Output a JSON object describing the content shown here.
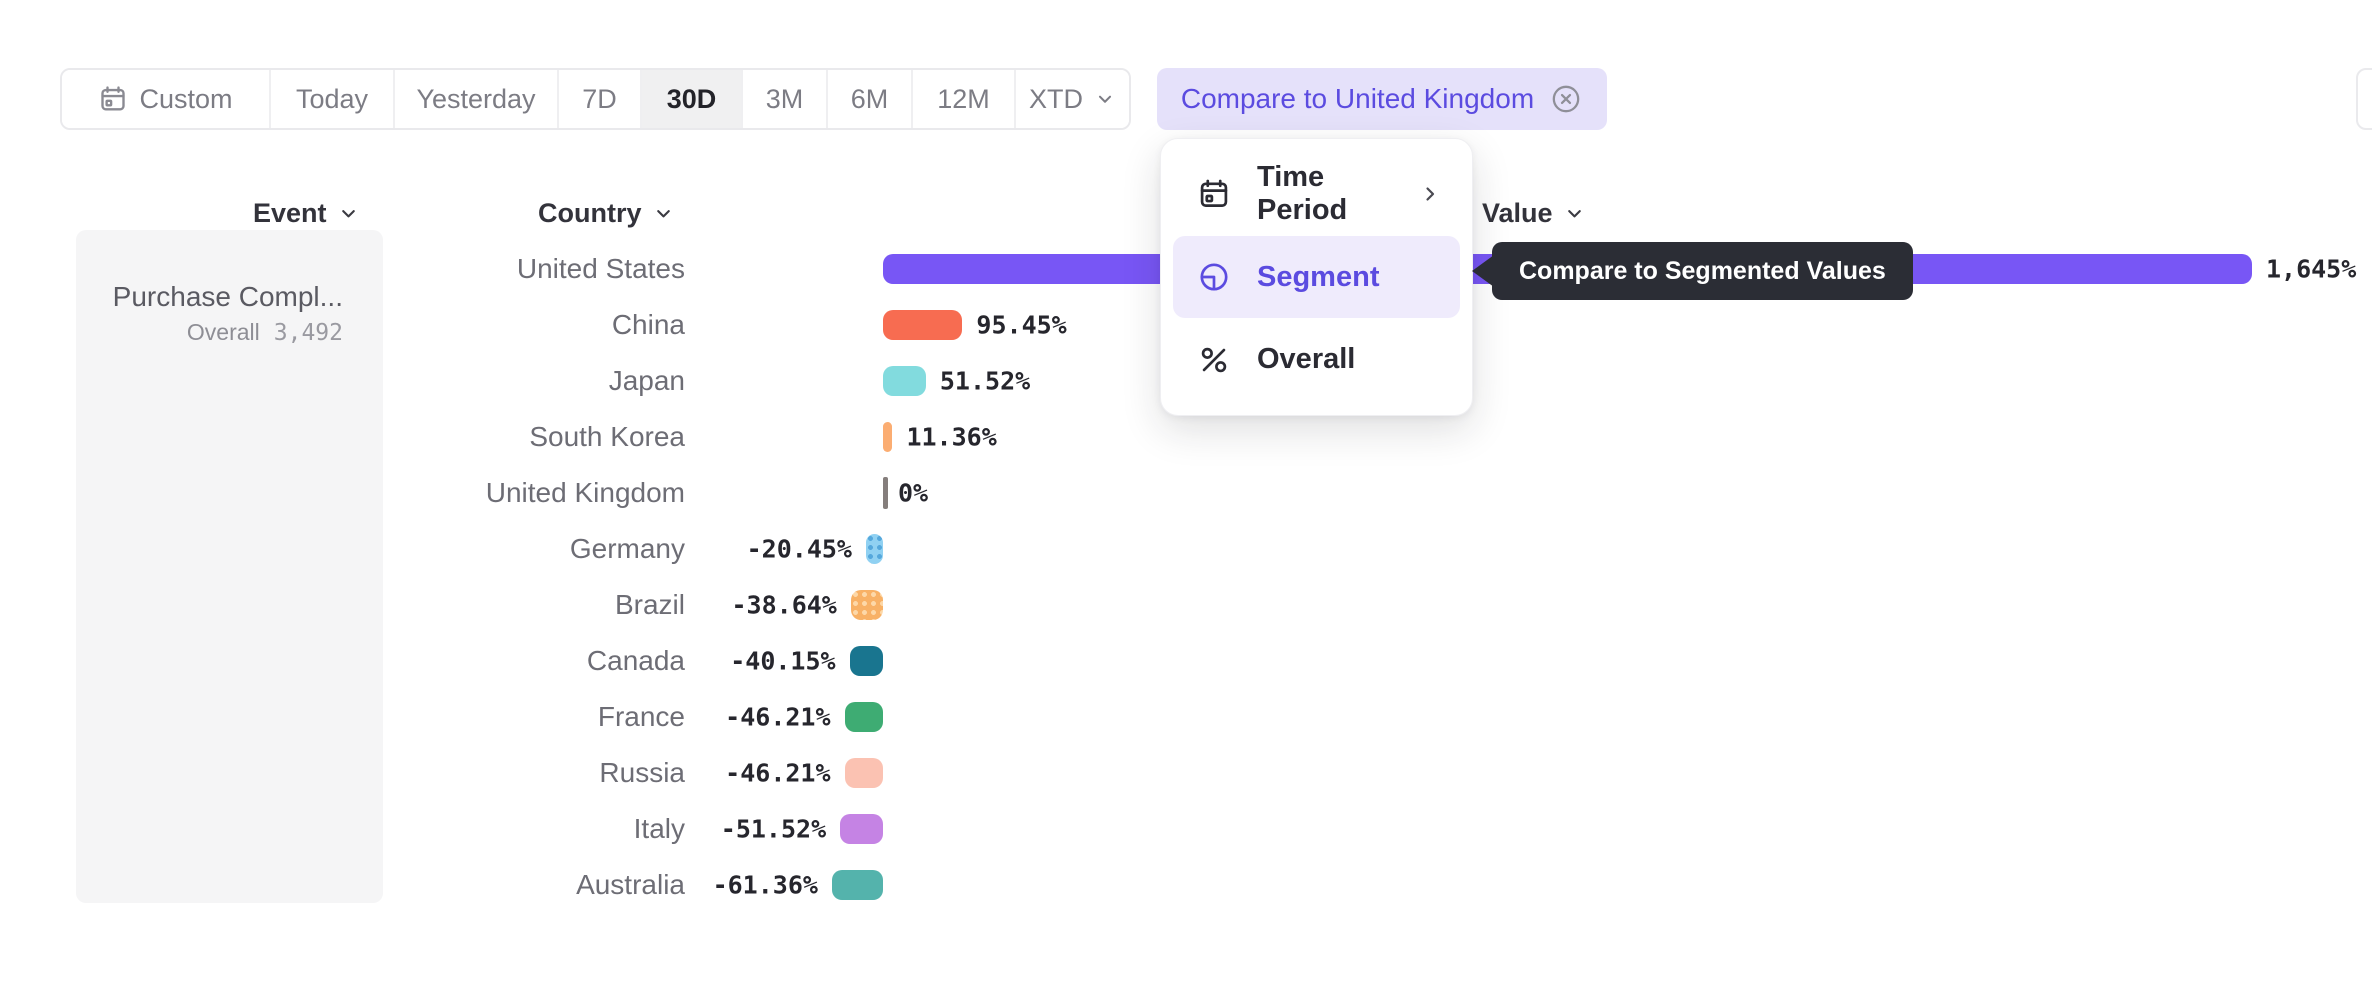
{
  "toolbar": {
    "buttons": [
      {
        "label": "Custom",
        "icon": "calendar-icon",
        "selected": false
      },
      {
        "label": "Today",
        "selected": false
      },
      {
        "label": "Yesterday",
        "selected": false
      },
      {
        "label": "7D",
        "selected": false
      },
      {
        "label": "30D",
        "selected": true
      },
      {
        "label": "3M",
        "selected": false
      },
      {
        "label": "6M",
        "selected": false
      },
      {
        "label": "12M",
        "selected": false
      },
      {
        "label": "XTD",
        "selected": false,
        "chevron": true
      }
    ]
  },
  "compare_pill": {
    "label": "Compare to United Kingdom",
    "close_icon": "circle-x-icon"
  },
  "columns": {
    "event": "Event",
    "country": "Country",
    "value": "Value"
  },
  "event_panel": {
    "event_name": "Purchase Compl...",
    "overall_label": "Overall",
    "overall_value": "3,492"
  },
  "chart_data": {
    "type": "bar",
    "orientation": "horizontal",
    "unit": "%",
    "baseline_category": "United Kingdom",
    "categories": [
      "United States",
      "China",
      "Japan",
      "South Korea",
      "United Kingdom",
      "Germany",
      "Brazil",
      "Canada",
      "France",
      "Russia",
      "Italy",
      "Australia"
    ],
    "values": [
      1645,
      95.45,
      51.52,
      11.36,
      0,
      -20.45,
      -38.64,
      -40.15,
      -46.21,
      -46.21,
      -51.52,
      -61.36
    ],
    "value_labels": [
      "1,645%",
      "95.45%",
      "51.52%",
      "11.36%",
      "0%",
      "-20.45%",
      "-38.64%",
      "-40.15%",
      "-46.21%",
      "-46.21%",
      "-51.52%",
      "-61.36%"
    ],
    "bar_colors": [
      "#7856F5",
      "#F76C51",
      "#82DBDE",
      "#FBAD72",
      "#857E7C",
      "#90D1F2",
      "#F8B166",
      "#19758F",
      "#3EAC73",
      "#FBC2B2",
      "#C583E4",
      "#54B3AC"
    ],
    "bar_patterns": [
      null,
      null,
      null,
      null,
      null,
      {
        "dot": "#55A8DC"
      },
      {
        "dot": "#FDD8A8"
      },
      null,
      null,
      null,
      null,
      null
    ],
    "xlabel": "Value",
    "ylabel": "Country"
  },
  "menu": {
    "items": [
      {
        "label": "Time Period",
        "icon": "calendar-icon",
        "chevron_right": true,
        "selected": false
      },
      {
        "label": "Segment",
        "icon": "segment-icon",
        "chevron_right": false,
        "selected": true
      },
      {
        "label": "Overall",
        "icon": "percent-icon",
        "chevron_right": false,
        "selected": false
      }
    ]
  },
  "tooltip": {
    "text": "Compare to Segmented Values"
  },
  "colors": {
    "accent": "#5B4BE0",
    "pill_bg": "#E5E1FA",
    "menu_selected_bg": "#EFEBFC",
    "tooltip_bg": "#2B2D35",
    "toolbar_selected_bg": "#F0F0F1",
    "panel_bg": "#F5F5F6"
  }
}
